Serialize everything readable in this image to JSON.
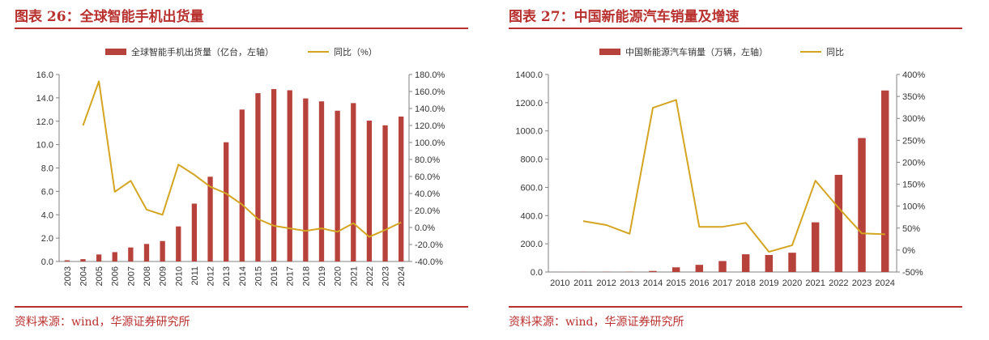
{
  "colors": {
    "bar": "#b7413b",
    "line": "#d4a520",
    "accent": "#b8312f",
    "axis": "#808080"
  },
  "left": {
    "title": "图表 26：全球智能手机出货量",
    "source": "资料来源：wind，华源证券研究所"
  },
  "right": {
    "title": "图表 27：中国新能源汽车销量及增速",
    "source": "资料来源：wind，华源证券研究所"
  },
  "chart_data": [
    {
      "type": "bar",
      "combo": "bar+line, dual y-axis",
      "categories": [
        "2003",
        "2004",
        "2005",
        "2006",
        "2007",
        "2008",
        "2009",
        "2010",
        "2011",
        "2012",
        "2013",
        "2014",
        "2015",
        "2016",
        "2017",
        "2018",
        "2019",
        "2020",
        "2021",
        "2022",
        "2023",
        "2024"
      ],
      "xlabel_rotation": "vertical",
      "y_left": {
        "ticks": [
          "0.0",
          "2.0",
          "4.0",
          "6.0",
          "8.0",
          "10.0",
          "12.0",
          "14.0",
          "16.0"
        ],
        "lim": [
          0,
          16
        ]
      },
      "y_right": {
        "ticks": [
          "-40.0%",
          "-20.0%",
          "0.0%",
          "20.0%",
          "40.0%",
          "60.0%",
          "80.0%",
          "100.0%",
          "120.0%",
          "140.0%",
          "160.0%",
          "180.0%"
        ],
        "lim": [
          -40,
          180
        ]
      },
      "legend_position": "top",
      "series": [
        {
          "name": "全球智能手机出货量（亿台，左轴）",
          "type": "bar",
          "axis": "left",
          "values": [
            0.1,
            0.2,
            0.6,
            0.8,
            1.2,
            1.5,
            1.75,
            3.0,
            4.95,
            7.25,
            10.2,
            13.0,
            14.4,
            14.75,
            14.65,
            13.95,
            13.7,
            12.9,
            13.55,
            12.05,
            11.65,
            12.4
          ]
        },
        {
          "name": "同比（%）",
          "type": "line",
          "axis": "right",
          "values": [
            null,
            120,
            172,
            42,
            55,
            21,
            15,
            74,
            62,
            48,
            40,
            27,
            10,
            2,
            -1,
            -4,
            -1,
            -5,
            5,
            -11,
            -3,
            6
          ]
        }
      ]
    },
    {
      "type": "bar",
      "combo": "bar+line, dual y-axis",
      "categories": [
        "2010",
        "2011",
        "2012",
        "2013",
        "2014",
        "2015",
        "2016",
        "2017",
        "2018",
        "2019",
        "2020",
        "2021",
        "2022",
        "2023",
        "2024"
      ],
      "y_left": {
        "ticks": [
          "0.0",
          "200.0",
          "400.0",
          "600.0",
          "800.0",
          "1000.0",
          "1200.0",
          "1400.0"
        ],
        "lim": [
          0,
          1400
        ]
      },
      "y_right": {
        "ticks": [
          "-50%",
          "0%",
          "50%",
          "100%",
          "150%",
          "200%",
          "250%",
          "300%",
          "350%",
          "400%"
        ],
        "lim": [
          -50,
          400
        ]
      },
      "legend_position": "top",
      "series": [
        {
          "name": "中国新能源汽车销量（万辆，左轴）",
          "type": "bar",
          "axis": "left",
          "values": [
            0.5,
            0.8,
            1.3,
            1.8,
            7.5,
            33.1,
            50.7,
            77.7,
            125.6,
            120.6,
            136.7,
            352.1,
            688.7,
            949.5,
            1286.6
          ]
        },
        {
          "name": "同比",
          "type": "line",
          "axis": "right",
          "values": [
            null,
            66,
            57,
            37,
            324,
            342,
            53,
            53,
            62,
            -4,
            11,
            158,
            96,
            38,
            36
          ]
        }
      ]
    }
  ]
}
